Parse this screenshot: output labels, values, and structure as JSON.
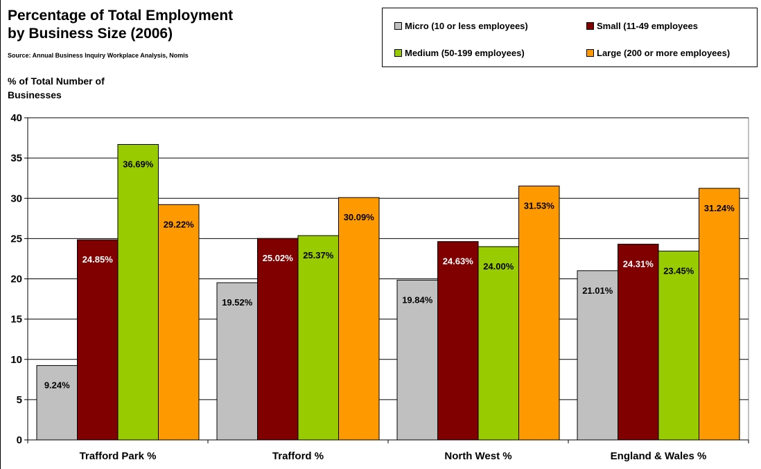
{
  "chart_data": {
    "type": "bar",
    "title_lines": [
      "Percentage of Total Employment",
      "by Business Size (2006)"
    ],
    "subtitle": "Source: Annual Business Inquiry Workplace Analysis, Nomis",
    "ylabel_lines": [
      "% of Total Number of",
      "Businesses"
    ],
    "xlabel": "",
    "ylim": [
      0,
      40
    ],
    "yticks": [
      0,
      5,
      10,
      15,
      20,
      25,
      30,
      35,
      40
    ],
    "grid": true,
    "legend_position": "top-right",
    "categories": [
      "Trafford Park %",
      "Trafford %",
      "North West %",
      "England & Wales %"
    ],
    "series": [
      {
        "name": "Micro (10 or less employees)",
        "color": "#c0c0c0",
        "label_color": "#000000",
        "values": [
          9.24,
          19.52,
          19.84,
          21.01
        ],
        "labels": [
          "9.24%",
          "19.52%",
          "19.84%",
          "21.01%"
        ]
      },
      {
        "name": "Small (11-49 employees",
        "color": "#800000",
        "label_color": "#ffffff",
        "values": [
          24.85,
          25.02,
          24.63,
          24.31
        ],
        "labels": [
          "24.85%",
          "25.02%",
          "24.63%",
          "24.31%"
        ]
      },
      {
        "name": "Medium (50-199 employees)",
        "color": "#99cc00",
        "label_color": "#000000",
        "values": [
          36.69,
          25.37,
          24.0,
          23.45
        ],
        "labels": [
          "36.69%",
          "25.37%",
          "24.00%",
          "23.45%"
        ]
      },
      {
        "name": "Large (200 or more employees)",
        "color": "#ff9900",
        "label_color": "#000000",
        "values": [
          29.22,
          30.09,
          31.53,
          31.24
        ],
        "labels": [
          "29.22%",
          "30.09%",
          "31.53%",
          "31.24%"
        ]
      }
    ]
  }
}
